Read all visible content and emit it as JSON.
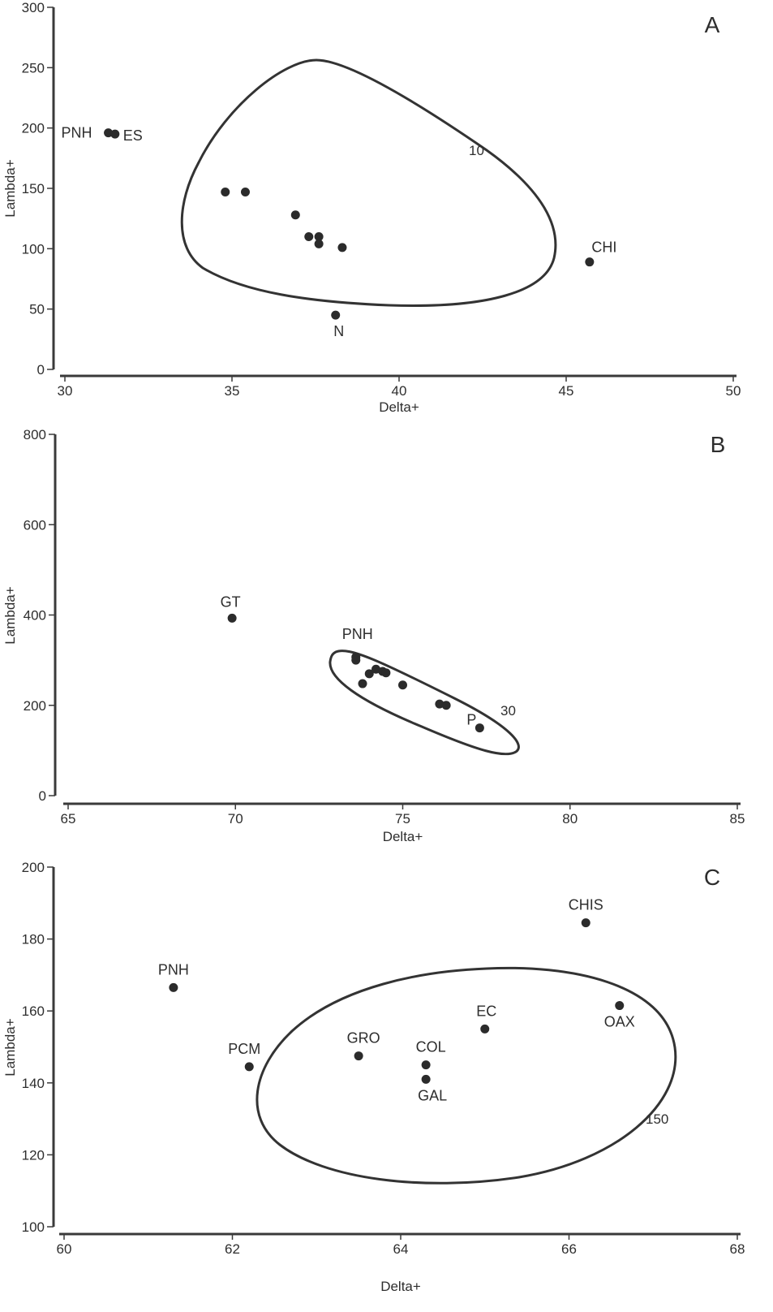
{
  "chart_data": [
    {
      "type": "scatter",
      "panel": "A",
      "xlabel": "Delta+",
      "ylabel": "Lambda+",
      "xlim": [
        30,
        50
      ],
      "ylim": [
        0,
        300
      ],
      "xticks": [
        "30",
        "35",
        "40",
        "45",
        "50"
      ],
      "yticks": [
        "0",
        "50",
        "100",
        "150",
        "200",
        "250",
        "300"
      ],
      "contour_label": "10",
      "points": [
        {
          "x": 31.3,
          "y": 196,
          "label": "PNH"
        },
        {
          "x": 31.5,
          "y": 195,
          "label": "ES"
        },
        {
          "x": 34.8,
          "y": 147,
          "label": ""
        },
        {
          "x": 35.4,
          "y": 147,
          "label": ""
        },
        {
          "x": 36.9,
          "y": 128,
          "label": ""
        },
        {
          "x": 37.3,
          "y": 110,
          "label": ""
        },
        {
          "x": 37.6,
          "y": 110,
          "label": ""
        },
        {
          "x": 37.6,
          "y": 104,
          "label": ""
        },
        {
          "x": 38.3,
          "y": 101,
          "label": ""
        },
        {
          "x": 38.1,
          "y": 45,
          "label": "N"
        },
        {
          "x": 45.7,
          "y": 89,
          "label": "CHI"
        }
      ]
    },
    {
      "type": "scatter",
      "panel": "B",
      "xlabel": "Delta+",
      "ylabel": "Lambda+",
      "xlim": [
        65,
        85
      ],
      "ylim": [
        0,
        800
      ],
      "xticks": [
        "65",
        "70",
        "75",
        "80",
        "85"
      ],
      "yticks": [
        "0",
        "200",
        "400",
        "600",
        "800"
      ],
      "contour_label": "30",
      "points": [
        {
          "x": 69.9,
          "y": 393,
          "label": "GT"
        },
        {
          "x": 73.6,
          "y": 307,
          "label": "PNH"
        },
        {
          "x": 73.6,
          "y": 300,
          "label": ""
        },
        {
          "x": 73.8,
          "y": 248,
          "label": ""
        },
        {
          "x": 74.0,
          "y": 270,
          "label": ""
        },
        {
          "x": 74.2,
          "y": 280,
          "label": ""
        },
        {
          "x": 74.4,
          "y": 275,
          "label": ""
        },
        {
          "x": 74.5,
          "y": 272,
          "label": ""
        },
        {
          "x": 75.0,
          "y": 245,
          "label": ""
        },
        {
          "x": 76.1,
          "y": 203,
          "label": ""
        },
        {
          "x": 76.3,
          "y": 200,
          "label": ""
        },
        {
          "x": 77.3,
          "y": 150,
          "label": "P"
        }
      ]
    },
    {
      "type": "scatter",
      "panel": "C",
      "xlabel": "Delta+",
      "ylabel": "Lambda+",
      "xlim": [
        60,
        68
      ],
      "ylim": [
        100,
        200
      ],
      "xticks": [
        "60",
        "62",
        "64",
        "66",
        "68"
      ],
      "yticks": [
        "100",
        "120",
        "140",
        "160",
        "180",
        "200"
      ],
      "contour_label": "150",
      "points": [
        {
          "x": 61.3,
          "y": 166.5,
          "label": "PNH"
        },
        {
          "x": 62.2,
          "y": 144.5,
          "label": "PCM"
        },
        {
          "x": 63.5,
          "y": 147.5,
          "label": "GRO"
        },
        {
          "x": 64.3,
          "y": 145,
          "label": "COL"
        },
        {
          "x": 64.3,
          "y": 141,
          "label": "GAL"
        },
        {
          "x": 65.0,
          "y": 155,
          "label": "EC"
        },
        {
          "x": 66.2,
          "y": 184.5,
          "label": "CHIS"
        },
        {
          "x": 66.6,
          "y": 161.5,
          "label": "OAX"
        }
      ]
    }
  ]
}
